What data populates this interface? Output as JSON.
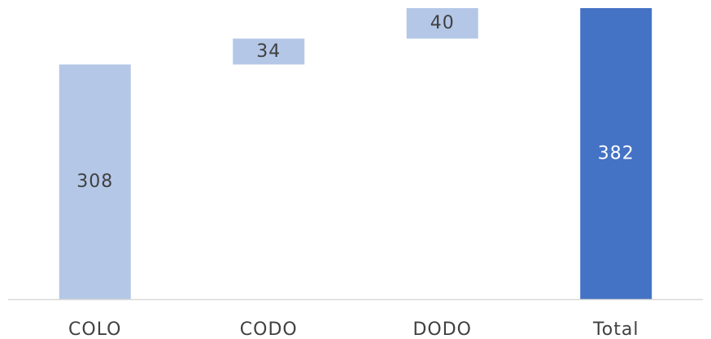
{
  "chart_data": {
    "type": "bar",
    "subtype": "waterfall",
    "categories": [
      "COLO",
      "CODO",
      "DODO",
      "Total"
    ],
    "values": [
      308,
      34,
      40,
      382
    ],
    "kinds": [
      "increase",
      "increase",
      "increase",
      "total"
    ],
    "data_labels": [
      "308",
      "34",
      "40",
      "382"
    ],
    "title": "",
    "xlabel": "",
    "ylabel": "",
    "ylim": [
      0,
      382
    ],
    "grid": false,
    "legend": "none",
    "colors": {
      "increase": "#b4c7e7",
      "total": "#4472c4",
      "axis": "#d9d9d9",
      "text": "#404040",
      "total_label": "#ffffff"
    }
  }
}
